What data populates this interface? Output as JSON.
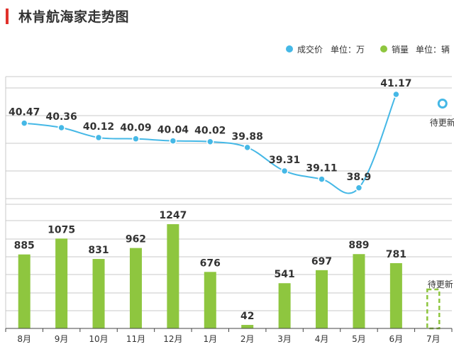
{
  "title": "林肯航海家走势图",
  "colors": {
    "price_line": "#45b8e6",
    "sales_bar": "#8ec63f",
    "title_accent": "#e0312b",
    "grid": "#c9c9c9",
    "text": "#333333"
  },
  "legend": {
    "price": {
      "name": "成交价",
      "unit": "单位：万"
    },
    "sales": {
      "name": "销量",
      "unit": "单位：辆"
    }
  },
  "pending_label": "待更新",
  "chart_data": [
    {
      "type": "line",
      "categories": [
        "8月",
        "9月",
        "10月",
        "11月",
        "12月",
        "1月",
        "2月",
        "3月",
        "4月",
        "5月",
        "6月",
        "7月"
      ],
      "series": [
        {
          "name": "成交价",
          "values": [
            40.47,
            40.36,
            40.12,
            40.09,
            40.04,
            40.02,
            39.88,
            39.31,
            39.11,
            38.9,
            41.17,
            null
          ]
        }
      ],
      "value_labels": [
        "40.47",
        "40.36",
        "40.12",
        "40.09",
        "40.04",
        "40.02",
        "39.88",
        "39.31",
        "39.11",
        "38.9",
        "41.17",
        "待更新"
      ],
      "ylabel": "单位：万",
      "ylim": [
        38.5,
        41.6
      ],
      "grid": true,
      "legend_position": "top-right"
    },
    {
      "type": "bar",
      "categories": [
        "8月",
        "9月",
        "10月",
        "11月",
        "12月",
        "1月",
        "2月",
        "3月",
        "4月",
        "5月",
        "6月",
        "7月"
      ],
      "series": [
        {
          "name": "销量",
          "values": [
            885,
            1075,
            831,
            962,
            1247,
            676,
            42,
            541,
            697,
            889,
            781,
            null
          ]
        }
      ],
      "value_labels": [
        "885",
        "1075",
        "831",
        "962",
        "1247",
        "676",
        "42",
        "541",
        "697",
        "889",
        "781",
        "待更新"
      ],
      "ylabel": "单位：辆",
      "ylim": [
        0,
        1400
      ],
      "grid": true,
      "legend_position": "top-right"
    }
  ]
}
